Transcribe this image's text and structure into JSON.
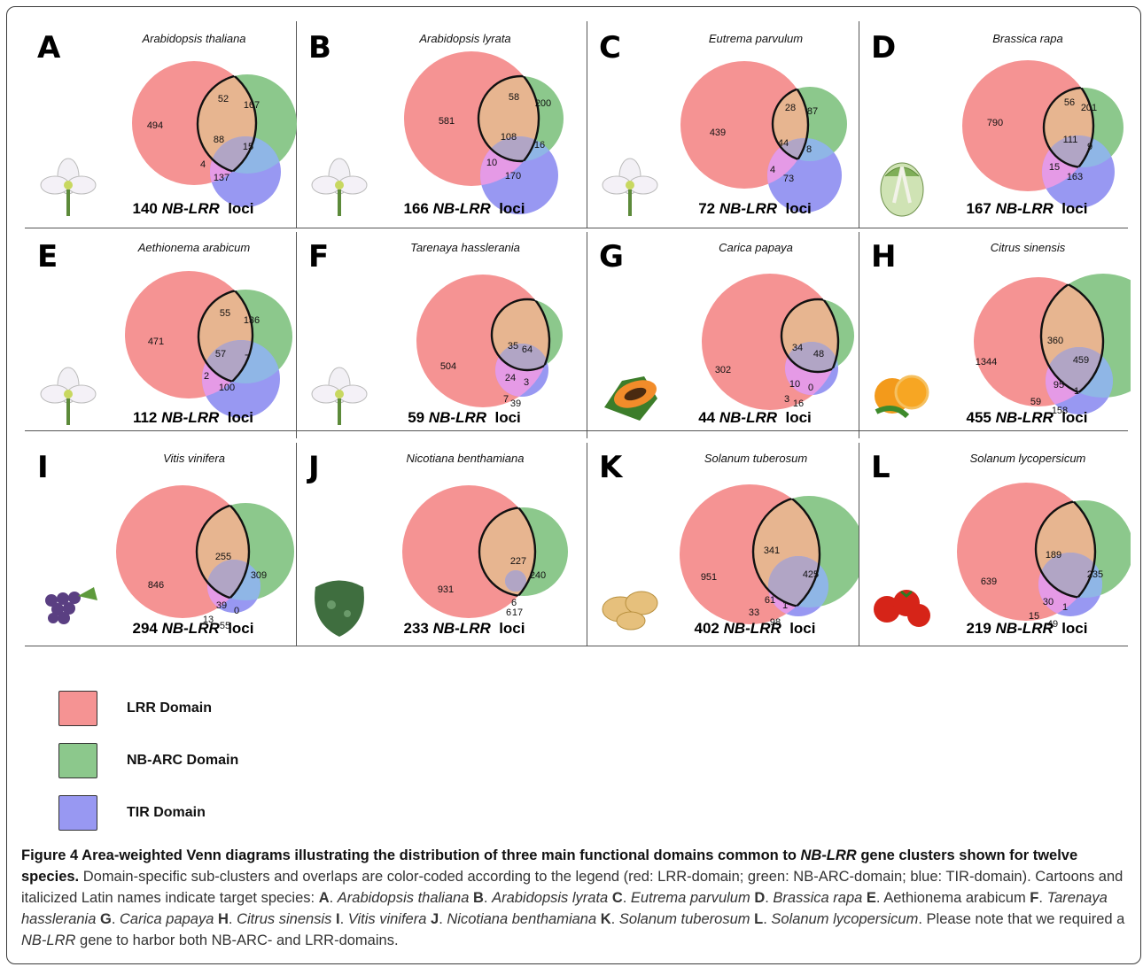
{
  "colors": {
    "lrr": "#f59393",
    "nbarc": "#8cc88c",
    "tir": "#9898f2",
    "lrr_nb": "#e7b590",
    "lrr_tir": "#e59ae6",
    "nb_tir": "#8fb6e6",
    "all": "#b1a5c5"
  },
  "panels": [
    {
      "letter": "A",
      "species": "Arabidopsis thaliana",
      "loci_count": "140",
      "loci_nb": "NB-LRR",
      "loci_suffix": "loci",
      "counts": {
        "lrr_only": "494",
        "lrr_nb": "52",
        "nb_only": "167",
        "all": "88",
        "nb_tir": "15",
        "lrr_tir": "4",
        "tir_only": "137"
      },
      "thumb_icon": "flower-icon"
    },
    {
      "letter": "B",
      "species": "Arabidopsis lyrata",
      "loci_count": "166",
      "loci_nb": "NB-LRR",
      "loci_suffix": "loci",
      "counts": {
        "lrr_only": "581",
        "lrr_nb": "58",
        "nb_only": "200",
        "all": "108",
        "nb_tir": "16",
        "lrr_tir": "10",
        "tir_only": "170"
      },
      "thumb_icon": "flower-icon"
    },
    {
      "letter": "C",
      "species": "Eutrema parvulum",
      "loci_count": "72",
      "loci_nb": "NB-LRR",
      "loci_suffix": "loci",
      "counts": {
        "lrr_only": "439",
        "lrr_nb": "28",
        "nb_only": "87",
        "all": "44",
        "nb_tir": "8",
        "lrr_tir": "4",
        "tir_only": "73"
      },
      "thumb_icon": "flower-icon"
    },
    {
      "letter": "D",
      "species": "Brassica rapa",
      "loci_count": "167",
      "loci_nb": "NB-LRR",
      "loci_suffix": "loci",
      "counts": {
        "lrr_only": "790",
        "lrr_nb": "56",
        "nb_only": "201",
        "all": "111",
        "nb_tir": "9",
        "lrr_tir": "15",
        "tir_only": "163"
      },
      "thumb_icon": "cabbage-icon"
    },
    {
      "letter": "E",
      "species": "Aethionema arabicum",
      "loci_count": "112",
      "loci_nb": "NB-LRR",
      "loci_suffix": "loci",
      "counts": {
        "lrr_only": "471",
        "lrr_nb": "55",
        "nb_only": "136",
        "all": "57",
        "nb_tir": "7",
        "lrr_tir": "2",
        "tir_only": "100"
      },
      "thumb_icon": "flower-icon"
    },
    {
      "letter": "F",
      "species": "Tarenaya hasslerania",
      "loci_count": "59",
      "loci_nb": "NB-LRR",
      "loci_suffix": "loci",
      "counts": {
        "lrr_only": "504",
        "lrr_nb": "35",
        "nb_only": "64",
        "all": "24",
        "nb_tir": "3",
        "lrr_tir": "7",
        "tir_only": "39"
      },
      "thumb_icon": "flower-icon"
    },
    {
      "letter": "G",
      "species": "Carica papaya",
      "loci_count": "44",
      "loci_nb": "NB-LRR",
      "loci_suffix": "loci",
      "counts": {
        "lrr_only": "302",
        "lrr_nb": "34",
        "nb_only": "48",
        "all": "10",
        "nb_tir": "0",
        "lrr_tir": "3",
        "tir_only": "16"
      },
      "thumb_icon": "papaya-icon"
    },
    {
      "letter": "H",
      "species": "Citrus sinensis",
      "loci_count": "455",
      "loci_nb": "NB-LRR",
      "loci_suffix": "loci",
      "counts": {
        "lrr_only": "1344",
        "lrr_nb": "360",
        "nb_only": "459",
        "all": "95",
        "nb_tir": "1",
        "lrr_tir": "59",
        "tir_only": "158"
      },
      "thumb_icon": "orange-icon"
    },
    {
      "letter": "I",
      "species": "Vitis vinifera",
      "loci_count": "294",
      "loci_nb": "NB-LRR",
      "loci_suffix": "loci",
      "counts": {
        "lrr_only": "846",
        "lrr_nb": "255",
        "nb_only": "309",
        "all": "39",
        "nb_tir": "0",
        "lrr_tir": "13",
        "tir_only": "55"
      },
      "thumb_icon": "grapes-icon"
    },
    {
      "letter": "J",
      "species": "Nicotiana benthamiana",
      "loci_count": "233",
      "loci_nb": "NB-LRR",
      "loci_suffix": "loci",
      "counts": {
        "lrr_only": "931",
        "lrr_nb": "227",
        "nb_only": "240",
        "all": "6",
        "nb_tir": "",
        "lrr_tir": "6",
        "tir_only": "17"
      },
      "thumb_icon": "leaf-icon"
    },
    {
      "letter": "K",
      "species": "Solanum tuberosum",
      "loci_count": "402",
      "loci_nb": "NB-LRR",
      "loci_suffix": "loci",
      "counts": {
        "lrr_only": "951",
        "lrr_nb": "341",
        "nb_only": "425",
        "all": "61",
        "nb_tir": "1",
        "lrr_tir": "33",
        "tir_only": "98"
      },
      "thumb_icon": "potato-icon"
    },
    {
      "letter": "L",
      "species": "Solanum lycopersicum",
      "loci_count": "219",
      "loci_nb": "NB-LRR",
      "loci_suffix": "loci",
      "counts": {
        "lrr_only": "639",
        "lrr_nb": "189",
        "nb_only": "235",
        "all": "30",
        "nb_tir": "1",
        "lrr_tir": "15",
        "tir_only": "49"
      },
      "thumb_icon": "tomato-icon"
    }
  ],
  "legend": [
    {
      "label": "LRR Domain",
      "color": "#f59393"
    },
    {
      "label": "NB-ARC Domain",
      "color": "#8cc88c"
    },
    {
      "label": "TIR Domain",
      "color": "#9898f2"
    }
  ],
  "caption": {
    "t1": "Figure 4 Area-weighted Venn diagrams illustrating the distribution of three main functional domains common to ",
    "t2": "NB-LRR",
    "t3": " gene clusters shown for twelve species.",
    "b1": " Domain-specific sub-clusters and overlaps are color-coded according to the legend (red: LRR-domain; green: NB-ARC-domain; blue: TIR-domain). Cartoons and italicized Latin names indicate target species: ",
    "species_list": [
      {
        "letter": "A",
        "name": "Arabidopsis thaliana",
        "italic": true
      },
      {
        "letter": "B",
        "name": "Arabidopsis lyrata",
        "italic": true
      },
      {
        "letter": "C",
        "name": "Eutrema parvulum",
        "italic": true
      },
      {
        "letter": "D",
        "name": "Brassica rapa",
        "italic": true
      },
      {
        "letter": "E",
        "name": "Aethionema arabicum",
        "italic": false
      },
      {
        "letter": "F",
        "name": "Tarenaya hasslerania",
        "italic": true
      },
      {
        "letter": "G",
        "name": "Carica papaya",
        "italic": true
      },
      {
        "letter": "H",
        "name": "Citrus sinensis",
        "italic": true
      },
      {
        "letter": "I",
        "name": "Vitis vinifera",
        "italic": true
      },
      {
        "letter": "J",
        "name": "Nicotiana benthamiana",
        "italic": true
      },
      {
        "letter": "K",
        "name": "Solanum tuberosum",
        "italic": true
      },
      {
        "letter": "L",
        "name": "Solanum lycopersicum",
        "italic": true
      }
    ],
    "end1": " Please note that we required a ",
    "end2": "NB-LRR",
    "end3": " gene to harbor both NB-ARC- and LRR-domains."
  }
}
